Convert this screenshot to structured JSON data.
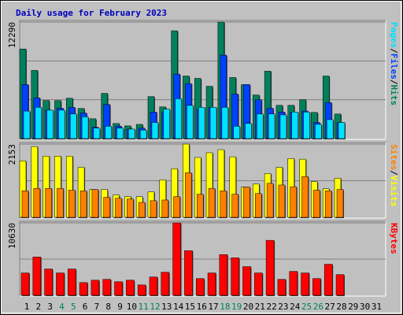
{
  "chart_data": {
    "type": "bar",
    "title": "Daily usage for February 2023",
    "categories": [
      "1",
      "2",
      "3",
      "4",
      "5",
      "6",
      "7",
      "8",
      "9",
      "10",
      "11",
      "12",
      "13",
      "14",
      "15",
      "16",
      "17",
      "18",
      "19",
      "20",
      "21",
      "22",
      "23",
      "24",
      "25",
      "26",
      "27",
      "28",
      "29",
      "30",
      "31"
    ],
    "weekend_categories": [
      "4",
      "5",
      "11",
      "12",
      "18",
      "19",
      "25",
      "26"
    ],
    "weekend_color": "#00805c",
    "separator": "/",
    "panels": [
      {
        "ylim": [
          0,
          12290
        ],
        "yticks": [
          12290
        ],
        "series": [
          {
            "name": "Hits",
            "color": "#00805c",
            "values": [
              9450,
              7190,
              4010,
              4010,
              4260,
              3180,
              2090,
              4770,
              1590,
              1340,
              1500,
              4430,
              3340,
              11370,
              6600,
              6350,
              5520,
              12290,
              6440,
              5690,
              4600,
              7110,
              3510,
              3510,
              4100,
              2760,
              6600,
              2590,
              null,
              null,
              null
            ]
          },
          {
            "name": "Files",
            "color": "#0040ff",
            "values": [
              5700,
              4300,
              3000,
              3200,
              3300,
              2700,
              1200,
              3600,
              1300,
              1000,
              1100,
              2800,
              2800,
              6800,
              5800,
              3100,
              3300,
              8800,
              4700,
              5700,
              4100,
              3200,
              2800,
              2800,
              2900,
              1700,
              3800,
              1700,
              null,
              null,
              null
            ]
          },
          {
            "name": "Pages",
            "color": "#00e0ff",
            "values": [
              2900,
              3300,
              3000,
              3000,
              2600,
              2300,
              1100,
              1300,
              1100,
              1000,
              900,
              1700,
              3100,
              4200,
              3500,
              3300,
              3300,
              3300,
              1300,
              1600,
              2600,
              2600,
              2500,
              2800,
              2800,
              1500,
              2000,
              1700,
              null,
              null,
              null
            ]
          }
        ]
      },
      {
        "ylim": [
          0,
          2153
        ],
        "yticks": [
          2153
        ],
        "series": [
          {
            "name": "Visits",
            "color": "#ffff00",
            "values": [
              1660,
              2080,
              1800,
              1800,
              1800,
              1470,
              820,
              820,
              655,
              610,
              610,
              750,
              1100,
              1430,
              2153,
              1760,
              1900,
              1990,
              1780,
              890,
              980,
              1290,
              1470,
              1730,
              1710,
              1050,
              840,
              1150,
              null,
              null,
              null
            ]
          },
          {
            "name": "Sites",
            "color": "#ff8000",
            "values": [
              780,
              850,
              850,
              850,
              800,
              780,
              820,
              590,
              560,
              540,
              440,
              490,
              510,
              610,
              1310,
              680,
              850,
              780,
              680,
              890,
              700,
              1000,
              950,
              900,
              1200,
              800,
              780,
              820,
              null,
              null,
              null
            ]
          }
        ]
      },
      {
        "ylim": [
          0,
          10630
        ],
        "yticks": [
          10630
        ],
        "series": [
          {
            "name": "KBytes",
            "color": "#ff0000",
            "values": [
              3280,
              5620,
              3860,
              3280,
              3860,
              1870,
              2220,
              2340,
              1990,
              2220,
              1520,
              2690,
              3390,
              10630,
              6550,
              2460,
              3280,
              5970,
              5500,
              4210,
              3280,
              8070,
              2340,
              3510,
              3280,
              2460,
              4560,
              3040,
              null,
              null,
              null
            ]
          }
        ]
      }
    ]
  }
}
